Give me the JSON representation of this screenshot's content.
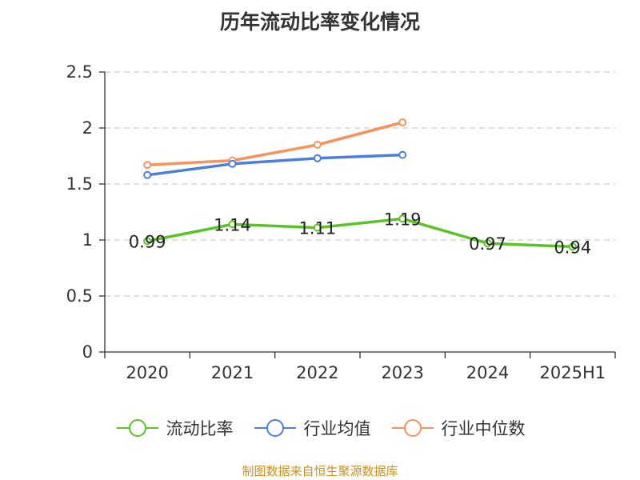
{
  "chart_data": {
    "type": "line",
    "title": "历年流动比率变化情况",
    "categories": [
      "2020",
      "2021",
      "2022",
      "2023",
      "2024",
      "2025H1"
    ],
    "ylim": [
      0,
      2.5
    ],
    "yticks": [
      "0",
      "0.5",
      "1",
      "1.5",
      "2",
      "2.5"
    ],
    "grid": true,
    "legend_position": "bottom",
    "series": [
      {
        "name": "流动比率",
        "color": "#5cc327",
        "values": [
          0.99,
          1.14,
          1.11,
          1.19,
          0.97,
          0.94
        ],
        "labels": [
          "0.99",
          "1.14",
          "1.11",
          "1.19",
          "0.97",
          "0.94"
        ]
      },
      {
        "name": "行业均值",
        "color": "#4b7fdc",
        "values": [
          1.58,
          1.68,
          1.73,
          1.76,
          null,
          null
        ]
      },
      {
        "name": "行业中位数",
        "color": "#f6925b",
        "values": [
          1.67,
          1.71,
          1.85,
          2.05,
          null,
          null
        ]
      }
    ],
    "source": "制图数据来自恒生聚源数据库"
  }
}
